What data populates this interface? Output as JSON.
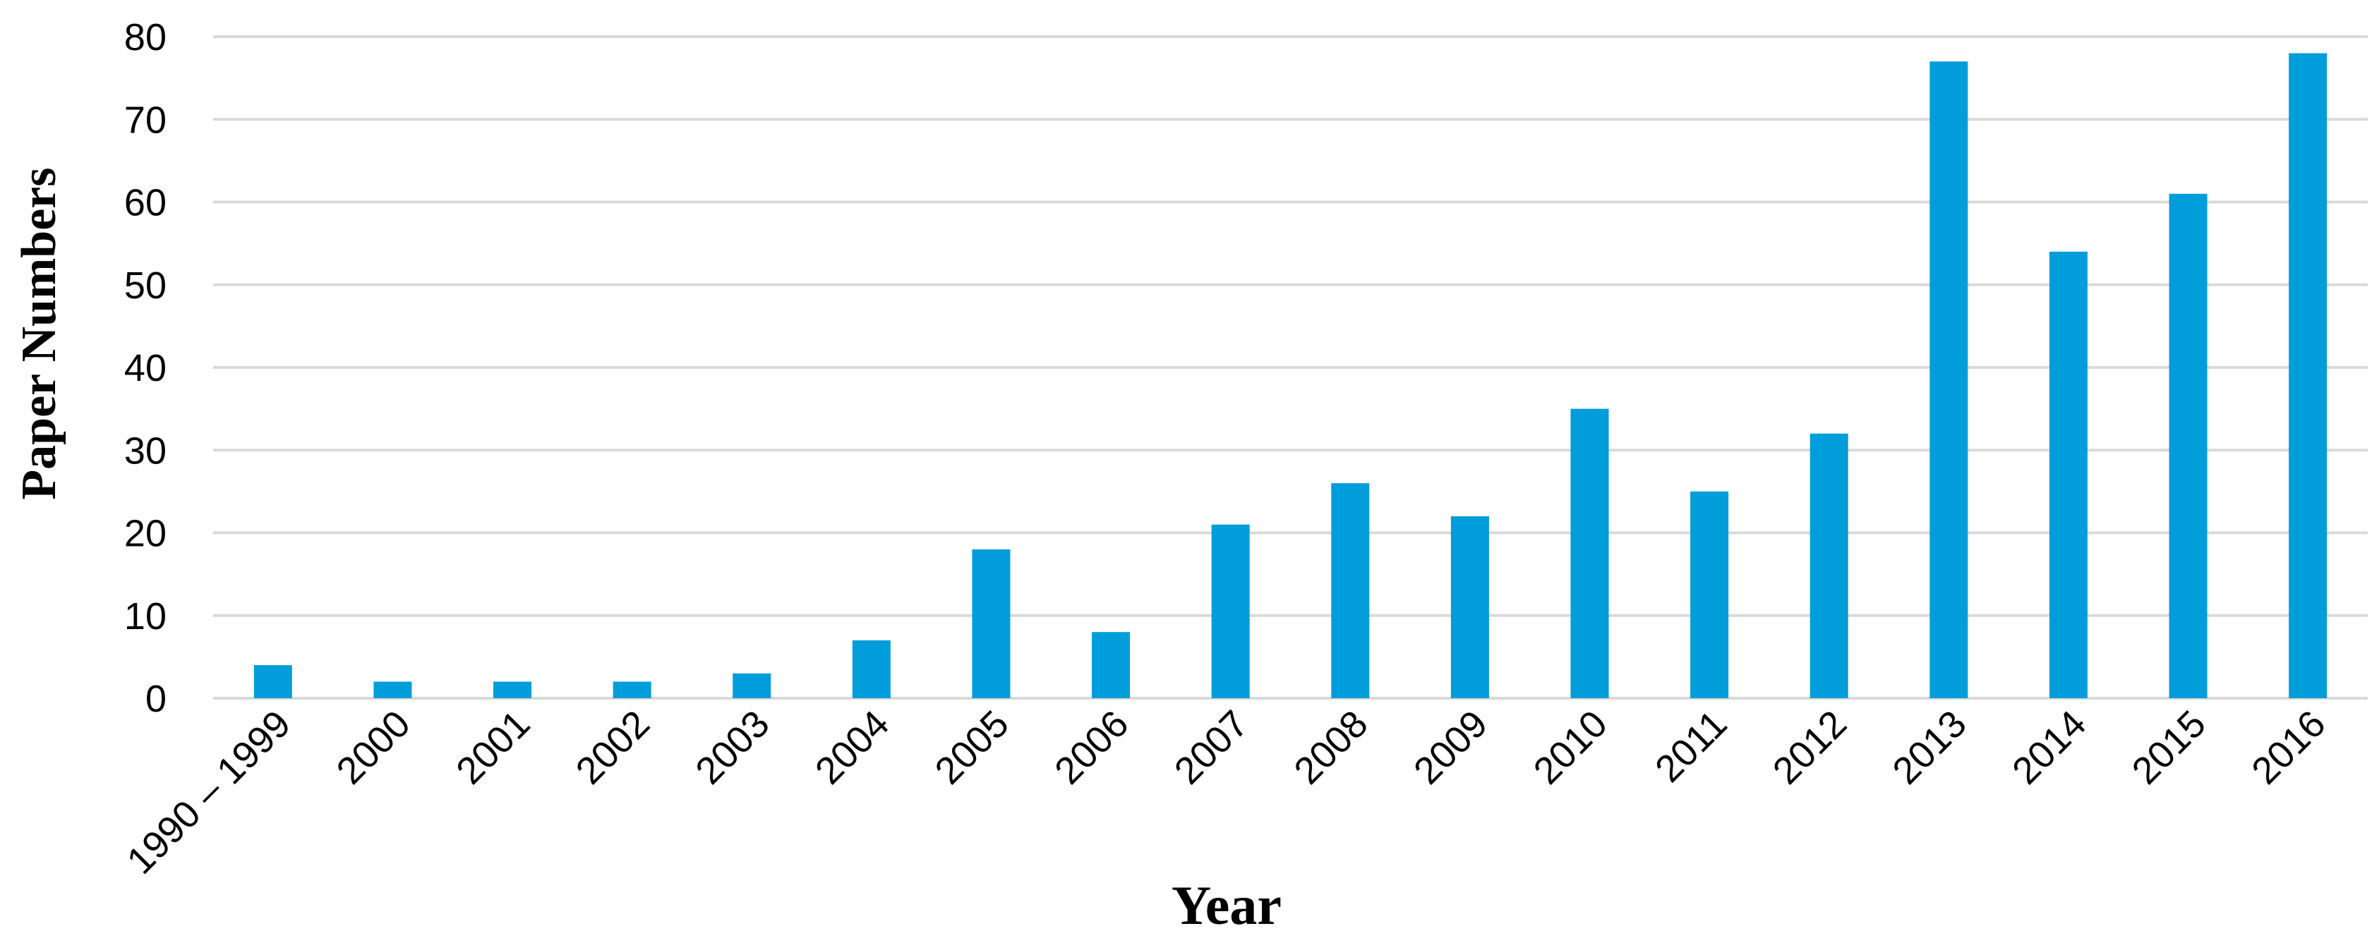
{
  "chart_data": {
    "type": "bar",
    "categories": [
      "1990 – 1999",
      "2000",
      "2001",
      "2002",
      "2003",
      "2004",
      "2005",
      "2006",
      "2007",
      "2008",
      "2009",
      "2010",
      "2011",
      "2012",
      "2013",
      "2014",
      "2015",
      "2016"
    ],
    "values": [
      4,
      2,
      2,
      2,
      3,
      7,
      18,
      8,
      21,
      26,
      22,
      35,
      25,
      32,
      77,
      54,
      61,
      78
    ],
    "title": "",
    "xlabel": "Year",
    "ylabel": "Paper Numbers",
    "ylim": [
      0,
      80
    ],
    "yticks": [
      0,
      10,
      20,
      30,
      40,
      50,
      60,
      70,
      80
    ],
    "grid": true,
    "legend": "none",
    "bar_color": "#009ddb"
  }
}
